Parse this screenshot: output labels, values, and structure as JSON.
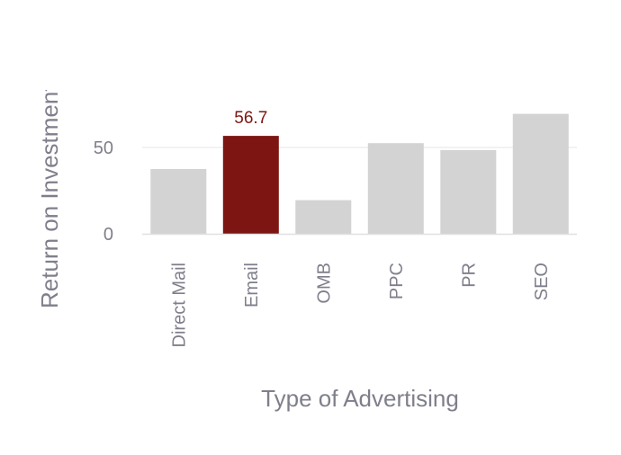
{
  "chart_data": {
    "type": "bar",
    "categories": [
      "Direct Mail",
      "Email",
      "OMB",
      "PPC",
      "PR",
      "SEO"
    ],
    "values": [
      37.5,
      56.7,
      19.5,
      52.5,
      48.5,
      69.5
    ],
    "highlight_index": 1,
    "data_labels": [
      {
        "index": 1,
        "text": "56.7"
      }
    ],
    "xlabel": "Type of Advertising",
    "ylabel": "Return on Investment",
    "yticks": [
      0,
      50
    ],
    "ylim": [
      0,
      80
    ],
    "grid": true,
    "colors": {
      "bar": "#d3d3d3",
      "highlight": "#7d1612",
      "grid": "#e6e6e6",
      "axis": "#e0e0e0",
      "text": "#7f7f8c"
    }
  }
}
